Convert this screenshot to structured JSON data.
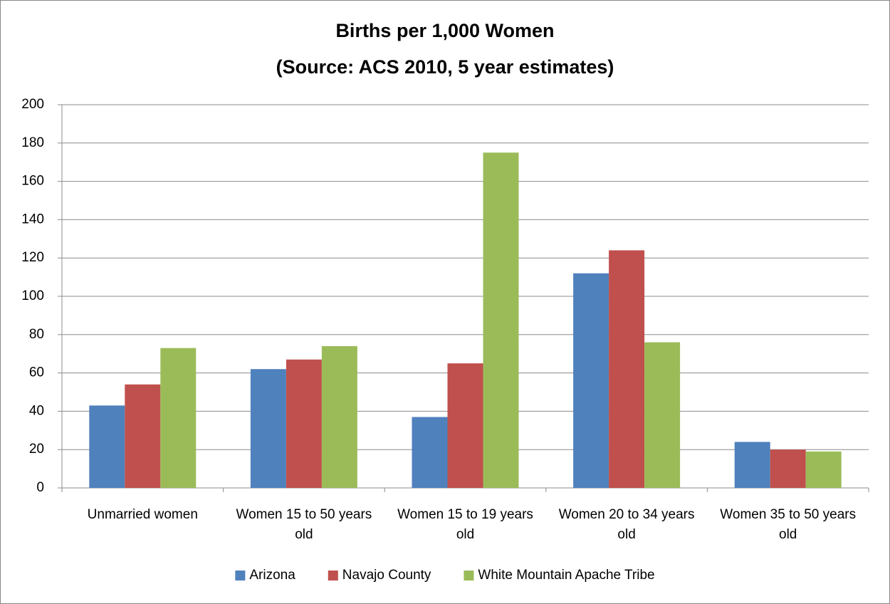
{
  "chart_data": {
    "type": "bar",
    "title": "Births per 1,000 Women",
    "subtitle": "(Source: ACS 2010, 5 year estimates)",
    "categories": [
      "Unmarried women",
      "Women 15 to 50 years old",
      "Women 15 to 19 years old",
      "Women 20 to 34 years old",
      "Women 35 to 50 years old"
    ],
    "series": [
      {
        "name": "Arizona",
        "color": "#4f81bd",
        "values": [
          43,
          62,
          37,
          112,
          24
        ]
      },
      {
        "name": "Navajo County",
        "color": "#c0504d",
        "values": [
          54,
          67,
          65,
          124,
          20
        ]
      },
      {
        "name": "White Mountain Apache Tribe",
        "color": "#9bbb59",
        "values": [
          73,
          74,
          175,
          76,
          19
        ]
      }
    ],
    "ylim": [
      0,
      200
    ],
    "yticks": [
      0,
      20,
      40,
      60,
      80,
      100,
      120,
      140,
      160,
      180,
      200
    ],
    "grid": true,
    "legend": "bottom"
  }
}
